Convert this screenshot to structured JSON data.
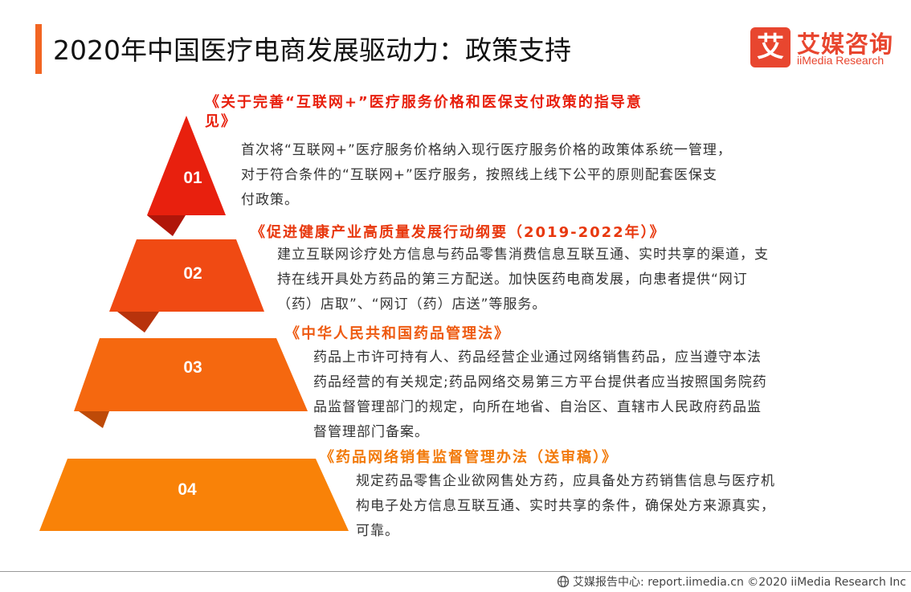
{
  "header": {
    "title": "2020年中国医疗电商发展驱动力：政策支持",
    "accent_color": "#F26522"
  },
  "logo": {
    "mark": "艾",
    "cn": "艾媒咨询",
    "en": "iiMedia Research",
    "color": "#E8462F"
  },
  "policies": [
    {
      "num": "01",
      "title": "《关于完善“互联网+”医疗服务价格和医保支付政策的指导意见》",
      "title_lines": [
        "《关于完善“互联网+”医疗服务价格和医保支付政策的指导意",
        "见》"
      ],
      "desc_lines": [
        "首次将“互联网+”医疗服务价格纳入现行医疗服务价格的政策体系统一管理，",
        "对于符合条件的“互联网+”医疗服务，按照线上线下公平的原则配套医保支",
        "付政策。"
      ],
      "color": "#E8200E",
      "dark_color": "#B0160A",
      "title_color": "#E8200E"
    },
    {
      "num": "02",
      "title": "《促进健康产业高质量发展行动纲要（2019-2022年）》",
      "title_lines": [
        "《促进健康产业高质量发展行动纲要（2019-2022年）》"
      ],
      "desc_lines": [
        "建立互联网诊疗处方信息与药品零售消费信息互联互通、实时共享的渠道，支",
        "持在线开具处方药品的第三方配送。加快医药电商发展，向患者提供“网订",
        "（药）店取”、“网订（药）店送”等服务。"
      ],
      "color": "#F04A13",
      "dark_color": "#B8330C",
      "title_color": "#E8380E"
    },
    {
      "num": "03",
      "title": "《中华人民共和国药品管理法》",
      "title_lines": [
        "《中华人民共和国药品管理法》"
      ],
      "desc_lines": [
        "药品上市许可持有人、药品经营企业通过网络销售药品，应当遵守本法",
        "药品经营的有关规定;药品网络交易第三方平台提供者应当按照国务院药",
        "品监督管理部门的规定，向所在地省、自治区、直辖市人民政府药品监",
        "督管理部门备案。"
      ],
      "color": "#F5680F",
      "dark_color": "#BE4A08",
      "title_color": "#EE5A10"
    },
    {
      "num": "04",
      "title": "《药品网络销售监督管理办法（送审稿）》",
      "title_lines": [
        "《药品网络销售监督管理办法（送审稿）》"
      ],
      "desc_lines": [
        "规定药品零售企业欲网售处方药，应具备处方药销售信息与医疗机",
        "构电子处方信息互联互通、实时共享的条件，确保处方来源真实，",
        "可靠。"
      ],
      "color": "#F98208",
      "dark_color": "#C46205",
      "title_color": "#F27A0A"
    }
  ],
  "footer": {
    "text": "艾媒报告中心: report.iimedia.cn ©2020 iiMedia Research Inc"
  }
}
